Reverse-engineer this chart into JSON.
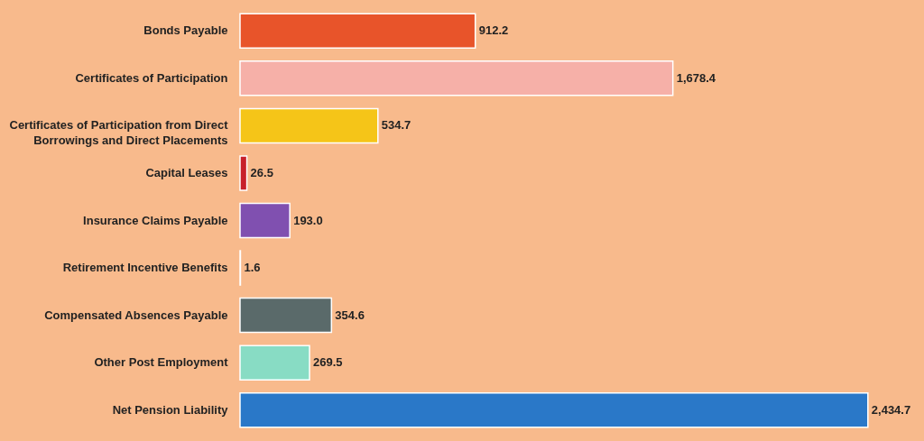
{
  "chart_data": {
    "type": "bar",
    "orientation": "horizontal",
    "data_labels": true,
    "categories": [
      "Bonds  Payable",
      "Certificates of Participation",
      "Certificates of Participation from Direct\nBorrowings and Direct Placements",
      "Capital Leases",
      "Insurance Claims Payable",
      "Retirement Incentive Benefits",
      "Compensated Absences Payable",
      "Other Post Employment",
      "Net Pension Liability"
    ],
    "values": [
      912.2,
      1678.4,
      534.7,
      26.5,
      193.0,
      1.6,
      354.6,
      269.5,
      2434.7
    ],
    "value_labels": [
      "912.2",
      "1,678.4",
      "534.7",
      "26.5",
      "193.0",
      "1.6",
      "354.6",
      "269.5",
      "2,434.7"
    ],
    "colors": [
      "#e8542a",
      "#f6b0a8",
      "#f5c518",
      "#c8202a",
      "#8050b0",
      "#30a040",
      "#5a6a6a",
      "#88dcc4",
      "#2a78c8"
    ]
  }
}
